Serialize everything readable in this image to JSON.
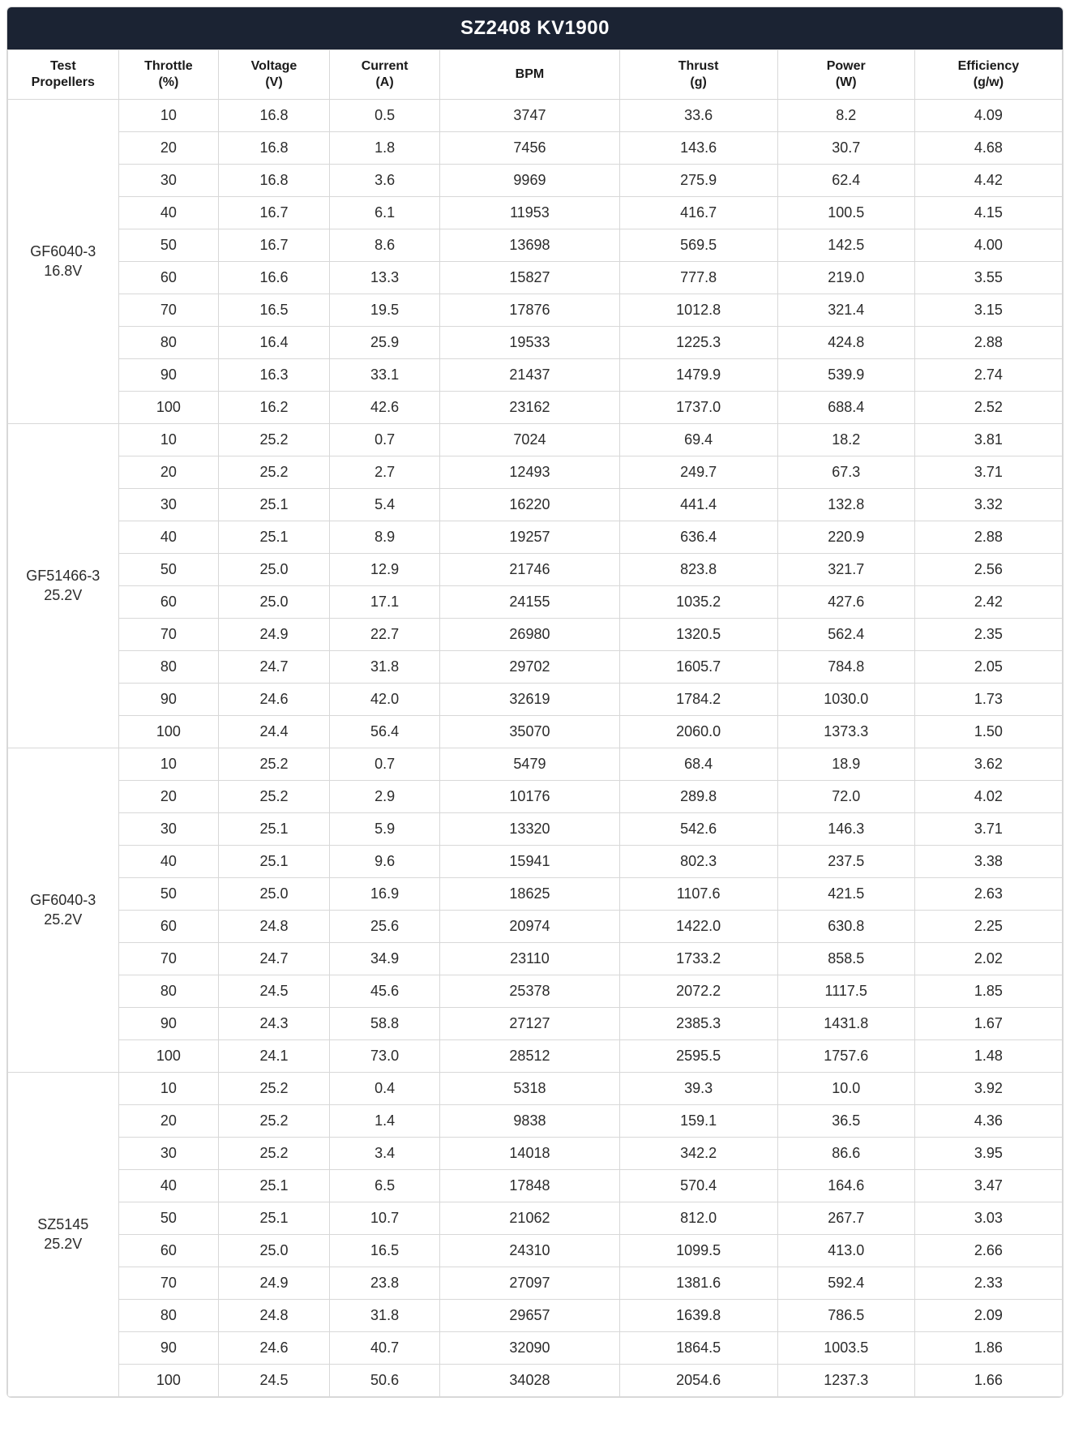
{
  "title": "SZ2408 KV1900",
  "columns": [
    {
      "l1": "Test",
      "l2": "Propellers"
    },
    {
      "l1": "Throttle",
      "l2": "(%)"
    },
    {
      "l1": "Voltage",
      "l2": "(V)"
    },
    {
      "l1": "Current",
      "l2": "(A)"
    },
    {
      "l1": "BPM",
      "l2": ""
    },
    {
      "l1": "Thrust",
      "l2": "(g)"
    },
    {
      "l1": "Power",
      "l2": "(W)"
    },
    {
      "l1": "Efficiency",
      "l2": "(g/w)"
    }
  ],
  "groups": [
    {
      "label_l1": "GF6040-3",
      "label_l2": "16.8V",
      "rows": [
        [
          "10",
          "16.8",
          "0.5",
          "3747",
          "33.6",
          "8.2",
          "4.09"
        ],
        [
          "20",
          "16.8",
          "1.8",
          "7456",
          "143.6",
          "30.7",
          "4.68"
        ],
        [
          "30",
          "16.8",
          "3.6",
          "9969",
          "275.9",
          "62.4",
          "4.42"
        ],
        [
          "40",
          "16.7",
          "6.1",
          "11953",
          "416.7",
          "100.5",
          "4.15"
        ],
        [
          "50",
          "16.7",
          "8.6",
          "13698",
          "569.5",
          "142.5",
          "4.00"
        ],
        [
          "60",
          "16.6",
          "13.3",
          "15827",
          "777.8",
          "219.0",
          "3.55"
        ],
        [
          "70",
          "16.5",
          "19.5",
          "17876",
          "1012.8",
          "321.4",
          "3.15"
        ],
        [
          "80",
          "16.4",
          "25.9",
          "19533",
          "1225.3",
          "424.8",
          "2.88"
        ],
        [
          "90",
          "16.3",
          "33.1",
          "21437",
          "1479.9",
          "539.9",
          "2.74"
        ],
        [
          "100",
          "16.2",
          "42.6",
          "23162",
          "1737.0",
          "688.4",
          "2.52"
        ]
      ]
    },
    {
      "label_l1": "GF51466-3",
      "label_l2": "25.2V",
      "rows": [
        [
          "10",
          "25.2",
          "0.7",
          "7024",
          "69.4",
          "18.2",
          "3.81"
        ],
        [
          "20",
          "25.2",
          "2.7",
          "12493",
          "249.7",
          "67.3",
          "3.71"
        ],
        [
          "30",
          "25.1",
          "5.4",
          "16220",
          "441.4",
          "132.8",
          "3.32"
        ],
        [
          "40",
          "25.1",
          "8.9",
          "19257",
          "636.4",
          "220.9",
          "2.88"
        ],
        [
          "50",
          "25.0",
          "12.9",
          "21746",
          "823.8",
          "321.7",
          "2.56"
        ],
        [
          "60",
          "25.0",
          "17.1",
          "24155",
          "1035.2",
          "427.6",
          "2.42"
        ],
        [
          "70",
          "24.9",
          "22.7",
          "26980",
          "1320.5",
          "562.4",
          "2.35"
        ],
        [
          "80",
          "24.7",
          "31.8",
          "29702",
          "1605.7",
          "784.8",
          "2.05"
        ],
        [
          "90",
          "24.6",
          "42.0",
          "32619",
          "1784.2",
          "1030.0",
          "1.73"
        ],
        [
          "100",
          "24.4",
          "56.4",
          "35070",
          "2060.0",
          "1373.3",
          "1.50"
        ]
      ]
    },
    {
      "label_l1": "GF6040-3",
      "label_l2": "25.2V",
      "rows": [
        [
          "10",
          "25.2",
          "0.7",
          "5479",
          "68.4",
          "18.9",
          "3.62"
        ],
        [
          "20",
          "25.2",
          "2.9",
          "10176",
          "289.8",
          "72.0",
          "4.02"
        ],
        [
          "30",
          "25.1",
          "5.9",
          "13320",
          "542.6",
          "146.3",
          "3.71"
        ],
        [
          "40",
          "25.1",
          "9.6",
          "15941",
          "802.3",
          "237.5",
          "3.38"
        ],
        [
          "50",
          "25.0",
          "16.9",
          "18625",
          "1107.6",
          "421.5",
          "2.63"
        ],
        [
          "60",
          "24.8",
          "25.6",
          "20974",
          "1422.0",
          "630.8",
          "2.25"
        ],
        [
          "70",
          "24.7",
          "34.9",
          "23110",
          "1733.2",
          "858.5",
          "2.02"
        ],
        [
          "80",
          "24.5",
          "45.6",
          "25378",
          "2072.2",
          "1117.5",
          "1.85"
        ],
        [
          "90",
          "24.3",
          "58.8",
          "27127",
          "2385.3",
          "1431.8",
          "1.67"
        ],
        [
          "100",
          "24.1",
          "73.0",
          "28512",
          "2595.5",
          "1757.6",
          "1.48"
        ]
      ]
    },
    {
      "label_l1": "SZ5145",
      "label_l2": "25.2V",
      "rows": [
        [
          "10",
          "25.2",
          "0.4",
          "5318",
          "39.3",
          "10.0",
          "3.92"
        ],
        [
          "20",
          "25.2",
          "1.4",
          "9838",
          "159.1",
          "36.5",
          "4.36"
        ],
        [
          "30",
          "25.2",
          "3.4",
          "14018",
          "342.2",
          "86.6",
          "3.95"
        ],
        [
          "40",
          "25.1",
          "6.5",
          "17848",
          "570.4",
          "164.6",
          "3.47"
        ],
        [
          "50",
          "25.1",
          "10.7",
          "21062",
          "812.0",
          "267.7",
          "3.03"
        ],
        [
          "60",
          "25.0",
          "16.5",
          "24310",
          "1099.5",
          "413.0",
          "2.66"
        ],
        [
          "70",
          "24.9",
          "23.8",
          "27097",
          "1381.6",
          "592.4",
          "2.33"
        ],
        [
          "80",
          "24.8",
          "31.8",
          "29657",
          "1639.8",
          "786.5",
          "2.09"
        ],
        [
          "90",
          "24.6",
          "40.7",
          "32090",
          "1864.5",
          "1003.5",
          "1.86"
        ],
        [
          "100",
          "24.5",
          "50.6",
          "34028",
          "2054.6",
          "1237.3",
          "1.66"
        ]
      ]
    }
  ],
  "style": {
    "title_bg": "#1b2333",
    "title_color": "#ffffff",
    "border_color": "#d8d8d8",
    "text_color": "#2b2b2b",
    "header_fontsize": 16,
    "cell_fontsize": 18
  }
}
